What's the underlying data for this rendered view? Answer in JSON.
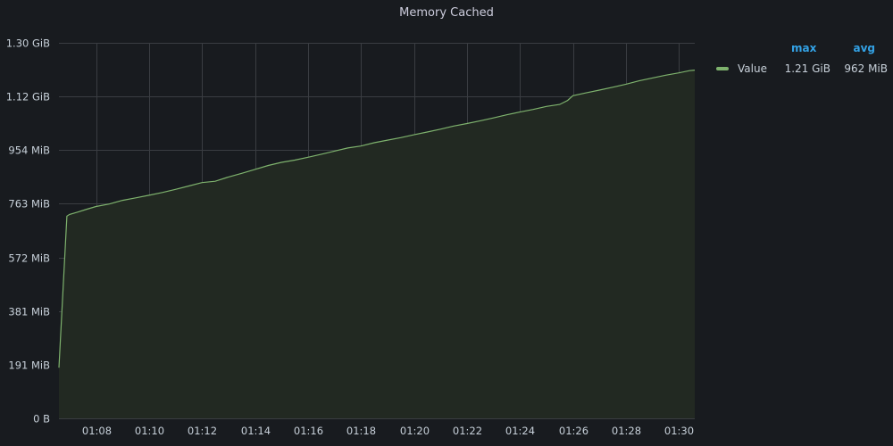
{
  "panel": {
    "title": "Memory Cached"
  },
  "legend": {
    "columns": [
      "max",
      "avg"
    ],
    "items": [
      {
        "name": "Value",
        "max": "1.21 GiB",
        "avg": "962 MiB"
      }
    ]
  },
  "colors": {
    "series_line": "#7eb26d",
    "series_fill": "#222922",
    "grid": "#3a3d42",
    "legend_header": "#33a2e5"
  },
  "chart_data": {
    "type": "area",
    "title": "Memory Cached",
    "xlabel": "",
    "ylabel": "",
    "y_unit": "MiB",
    "ylim": [
      0,
      1335
    ],
    "yticks": [
      {
        "value": 0,
        "label": "0 B"
      },
      {
        "value": 191,
        "label": "191 MiB"
      },
      {
        "value": 381,
        "label": "381 MiB"
      },
      {
        "value": 572,
        "label": "572 MiB"
      },
      {
        "value": 763,
        "label": "763 MiB"
      },
      {
        "value": 954,
        "label": "954 MiB"
      },
      {
        "value": 1144,
        "label": "1.12 GiB"
      },
      {
        "value": 1335,
        "label": "1.30 GiB"
      }
    ],
    "x_unit": "minutes",
    "xlim": [
      66.6,
      90.6
    ],
    "xticks": [
      {
        "value": 68,
        "label": "01:08"
      },
      {
        "value": 70,
        "label": "01:10"
      },
      {
        "value": 72,
        "label": "01:12"
      },
      {
        "value": 74,
        "label": "01:14"
      },
      {
        "value": 76,
        "label": "01:16"
      },
      {
        "value": 78,
        "label": "01:18"
      },
      {
        "value": 80,
        "label": "01:20"
      },
      {
        "value": 82,
        "label": "01:22"
      },
      {
        "value": 84,
        "label": "01:24"
      },
      {
        "value": 86,
        "label": "01:26"
      },
      {
        "value": 88,
        "label": "01:28"
      },
      {
        "value": 90,
        "label": "01:30"
      }
    ],
    "grid": true,
    "legend_position": "right",
    "series": [
      {
        "name": "Value",
        "x": [
          66.6,
          66.9,
          67.0,
          67.3,
          67.6,
          68.0,
          68.5,
          69.0,
          69.5,
          70.0,
          70.5,
          71.0,
          71.5,
          72.0,
          72.5,
          73.0,
          73.5,
          74.0,
          74.5,
          75.0,
          75.5,
          76.0,
          76.5,
          77.0,
          77.5,
          78.0,
          78.5,
          79.0,
          79.5,
          80.0,
          80.5,
          81.0,
          81.5,
          82.0,
          82.5,
          83.0,
          83.5,
          84.0,
          84.5,
          85.0,
          85.5,
          85.8,
          86.0,
          86.5,
          87.0,
          87.5,
          88.0,
          88.5,
          89.0,
          89.5,
          90.0,
          90.4,
          90.6
        ],
        "values": [
          180,
          719,
          725,
          733,
          742,
          753,
          762,
          775,
          784,
          793,
          803,
          814,
          826,
          838,
          843,
          858,
          871,
          885,
          899,
          910,
          918,
          928,
          939,
          950,
          961,
          968,
          980,
          989,
          998,
          1008,
          1018,
          1028,
          1039,
          1048,
          1058,
          1068,
          1079,
          1089,
          1098,
          1109,
          1116,
          1130,
          1147,
          1157,
          1167,
          1177,
          1188,
          1200,
          1210,
          1220,
          1228,
          1236,
          1238
        ]
      }
    ]
  }
}
